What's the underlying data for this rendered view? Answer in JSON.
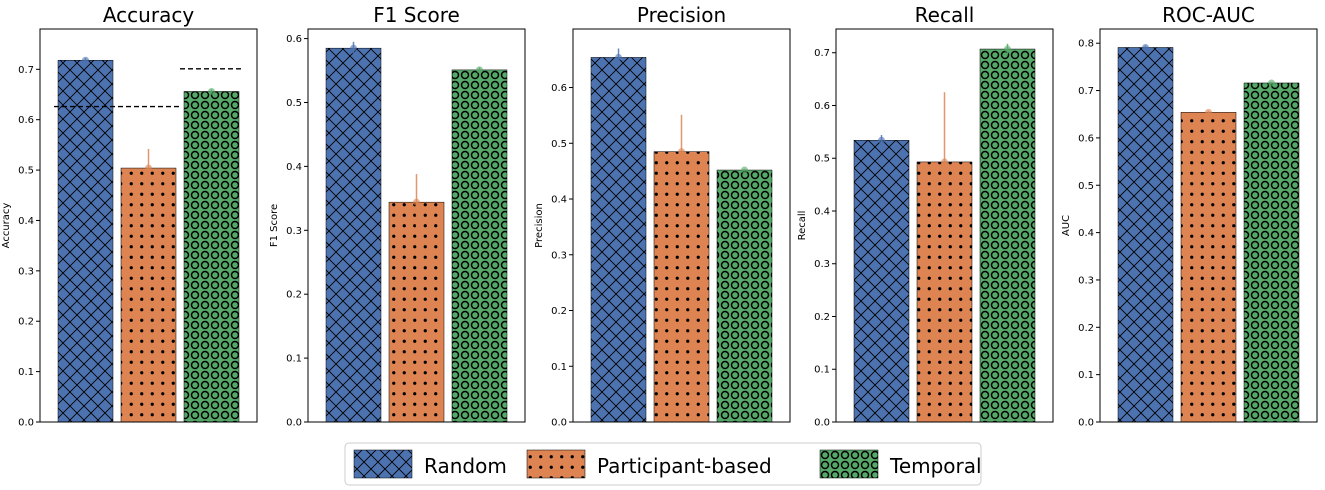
{
  "legend": {
    "location": "bottom-center",
    "entries": [
      {
        "label": "Random",
        "color": "#4c72b0",
        "hatch": "crosshatch"
      },
      {
        "label": "Participant-based",
        "color": "#dd8452",
        "hatch": "dots"
      },
      {
        "label": "Temporal",
        "color": "#55a868",
        "hatch": "circles"
      }
    ]
  },
  "chart_data": [
    {
      "type": "bar",
      "title": "Accuracy",
      "ylabel": "Accuracy",
      "xlabel": "",
      "categories": [
        "Random",
        "Participant-based",
        "Temporal"
      ],
      "values": [
        0.718,
        0.504,
        0.656
      ],
      "errors": [
        0.004,
        0.038,
        0.004
      ],
      "ylim": [
        0,
        0.78
      ],
      "yticks": [
        0.0,
        0.1,
        0.2,
        0.3,
        0.4,
        0.5,
        0.6,
        0.7
      ],
      "ytick_labels": [
        "0.0",
        "0.1",
        "0.2",
        "0.3",
        "0.4",
        "0.5",
        "0.6",
        "0.7"
      ],
      "reference_lines": [
        {
          "value": 0.626,
          "x_from": -0.5,
          "x_to": 1.5
        },
        {
          "value": 0.701,
          "x_from": 1.5,
          "x_to": 2.5
        }
      ]
    },
    {
      "type": "bar",
      "title": "F1 Score",
      "ylabel": "F1 Score",
      "xlabel": "",
      "categories": [
        "Random",
        "Participant-based",
        "Temporal"
      ],
      "values": [
        0.585,
        0.344,
        0.551
      ],
      "errors": [
        0.01,
        0.044,
        0.004
      ],
      "ylim": [
        0,
        0.615
      ],
      "yticks": [
        0.0,
        0.1,
        0.2,
        0.3,
        0.4,
        0.5,
        0.6
      ],
      "ytick_labels": [
        "0.0",
        "0.1",
        "0.2",
        "0.3",
        "0.4",
        "0.5",
        "0.6"
      ]
    },
    {
      "type": "bar",
      "title": "Precision",
      "ylabel": "Precision",
      "xlabel": "",
      "categories": [
        "Random",
        "Participant-based",
        "Temporal"
      ],
      "values": [
        0.654,
        0.485,
        0.452
      ],
      "errors": [
        0.016,
        0.066,
        0.002
      ],
      "ylim": [
        0,
        0.705
      ],
      "yticks": [
        0.0,
        0.1,
        0.2,
        0.3,
        0.4,
        0.5,
        0.6
      ],
      "ytick_labels": [
        "0.0",
        "0.1",
        "0.2",
        "0.3",
        "0.4",
        "0.5",
        "0.6"
      ]
    },
    {
      "type": "bar",
      "title": "Recall",
      "ylabel": "Recall",
      "xlabel": "",
      "categories": [
        "Random",
        "Participant-based",
        "Temporal"
      ],
      "values": [
        0.534,
        0.493,
        0.707
      ],
      "errors": [
        0.01,
        0.132,
        0.01
      ],
      "ylim": [
        0,
        0.745
      ],
      "yticks": [
        0.0,
        0.1,
        0.2,
        0.3,
        0.4,
        0.5,
        0.6,
        0.7
      ],
      "ytick_labels": [
        "0.0",
        "0.1",
        "0.2",
        "0.3",
        "0.4",
        "0.5",
        "0.6",
        "0.7"
      ]
    },
    {
      "type": "bar",
      "title": "ROC-AUC",
      "ylabel": "AUC",
      "xlabel": "",
      "categories": [
        "Random",
        "Participant-based",
        "Temporal"
      ],
      "values": [
        0.791,
        0.654,
        0.716
      ],
      "errors": [
        0.004,
        0.003,
        0.002
      ],
      "ylim": [
        0,
        0.83
      ],
      "yticks": [
        0.0,
        0.1,
        0.2,
        0.3,
        0.4,
        0.5,
        0.6,
        0.7,
        0.8
      ],
      "ytick_labels": [
        "0.0",
        "0.1",
        "0.2",
        "0.3",
        "0.4",
        "0.5",
        "0.6",
        "0.7",
        "0.8"
      ]
    }
  ]
}
